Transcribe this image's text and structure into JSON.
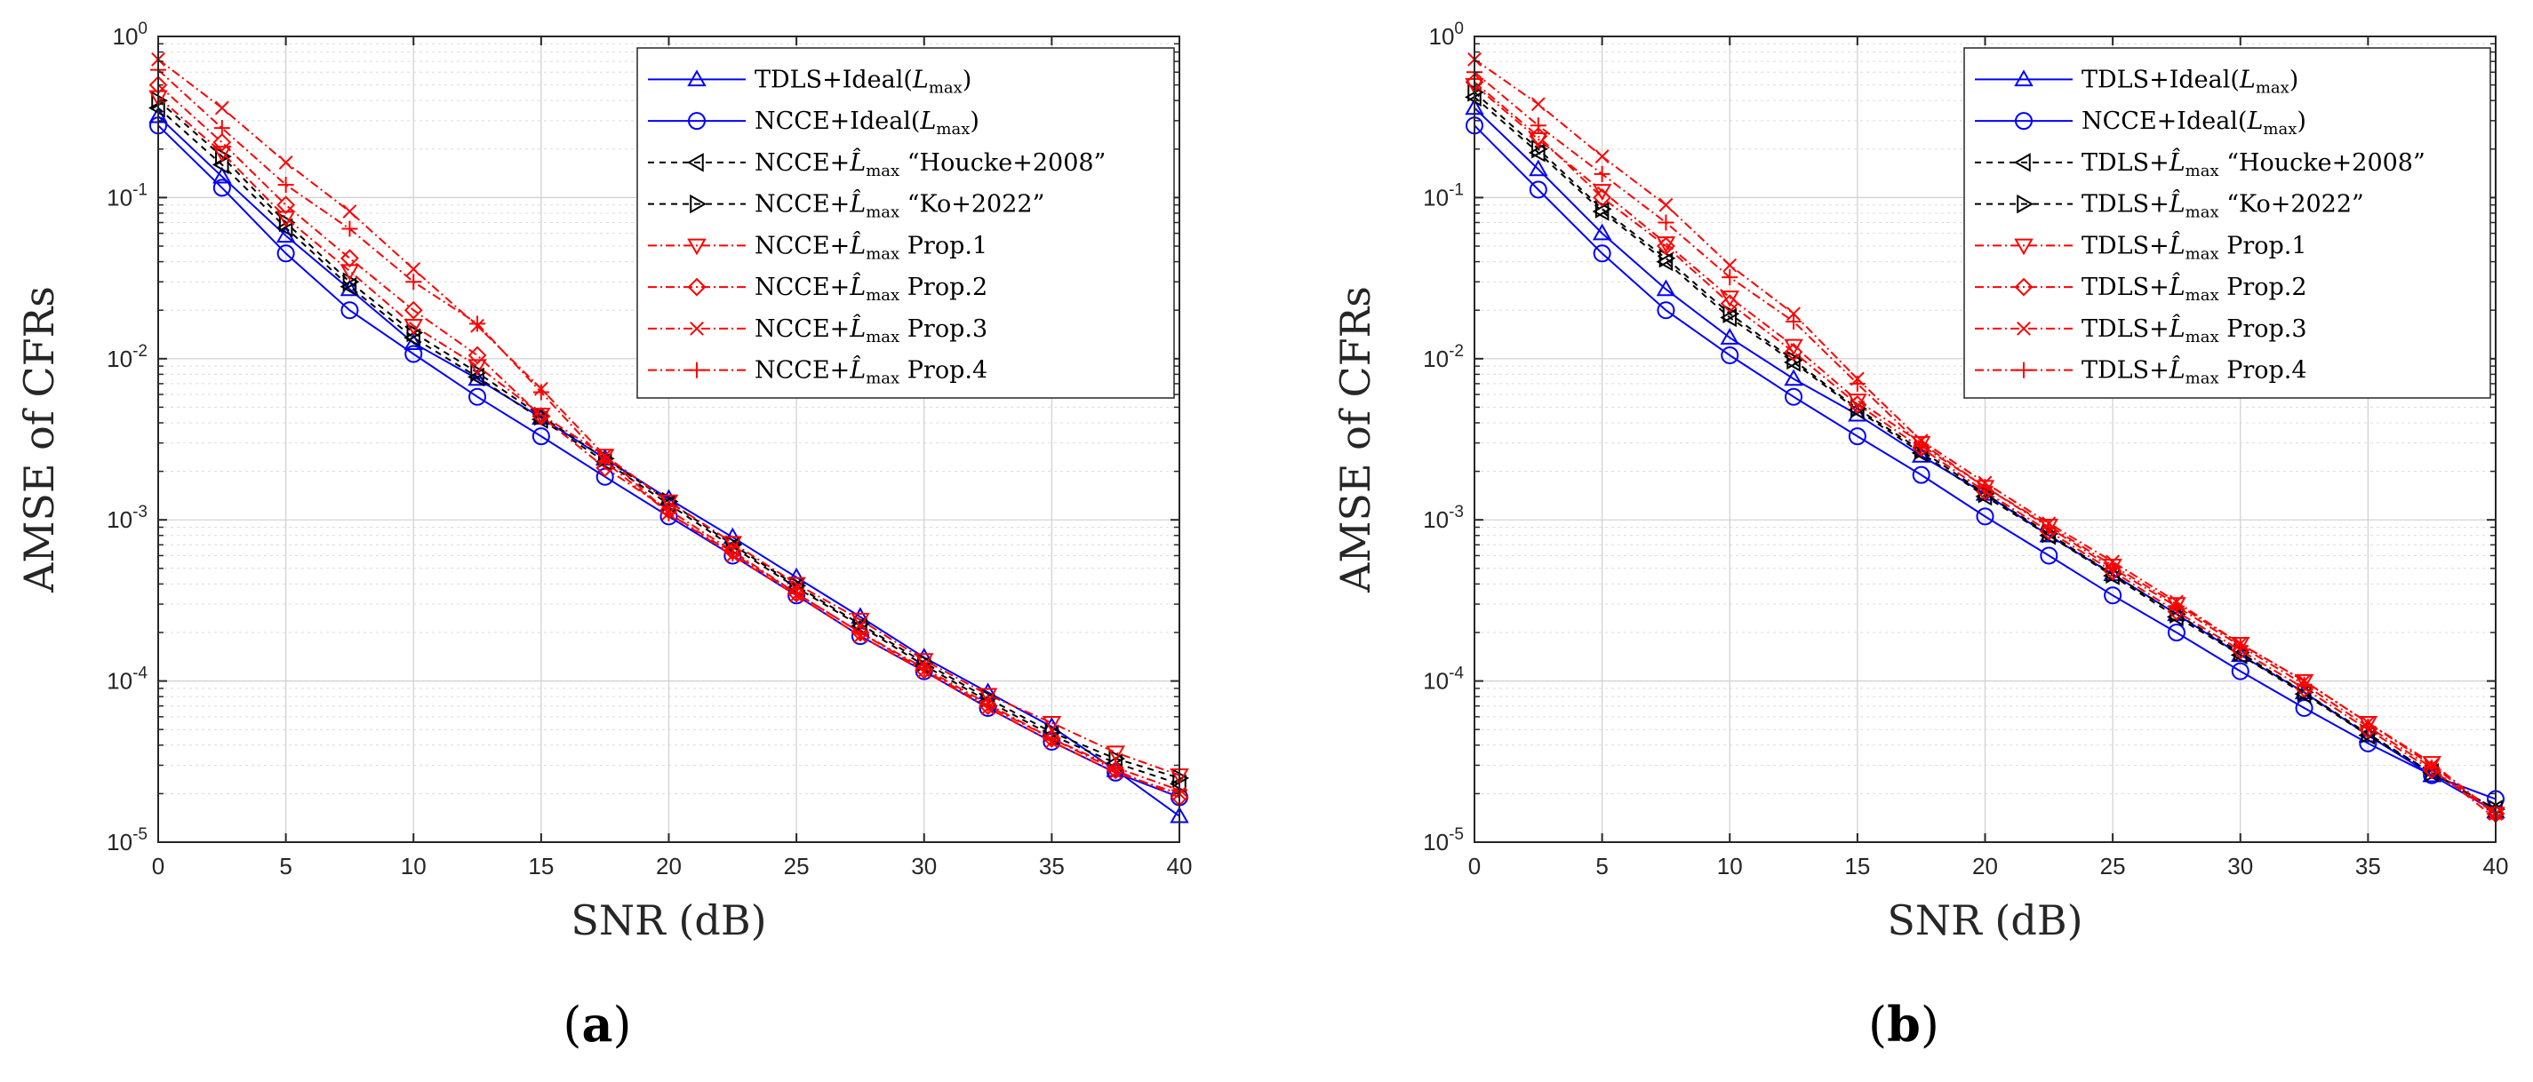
{
  "chart_data": [
    {
      "type": "line",
      "panel_label": "(a)",
      "xlabel": "SNR (dB)",
      "ylabel": "AMSE of CFRs",
      "xlim": [
        0,
        40
      ],
      "ylim": [
        1e-05,
        1
      ],
      "yscale": "log",
      "grid": "on",
      "legend_position": "top-right",
      "x_ticks": [
        "0",
        "5",
        "10",
        "15",
        "20",
        "25",
        "30",
        "35",
        "40"
      ],
      "y_ticks": [
        {
          "base": "10",
          "exp": "0"
        },
        {
          "base": "10",
          "exp": "-1"
        },
        {
          "base": "10",
          "exp": "-2"
        },
        {
          "base": "10",
          "exp": "-3"
        },
        {
          "base": "10",
          "exp": "-4"
        },
        {
          "base": "10",
          "exp": "-5"
        }
      ],
      "x": [
        0,
        2.5,
        5,
        7.5,
        10,
        12.5,
        15,
        17.5,
        20,
        22.5,
        25,
        27.5,
        30,
        32.5,
        35,
        37.5,
        40
      ],
      "series": [
        {
          "name": "TDLS+Ideal(L_max)",
          "legend": {
            "pre": "TDLS+Ideal(",
            "sym": "L",
            "sub": "max",
            "post": ")"
          },
          "color": "#0000ff",
          "dash": "",
          "marker": "triangle-up",
          "values": [
            0.32,
            0.135,
            0.058,
            0.027,
            0.0125,
            0.0075,
            0.0043,
            0.0024,
            0.00135,
            0.00078,
            0.00044,
            0.00025,
            0.00014,
            8.5e-05,
            5.2e-05,
            2.8e-05,
            1.45e-05
          ]
        },
        {
          "name": "NCCE+Ideal(L_max)",
          "legend": {
            "pre": "NCCE+Ideal(",
            "sym": "L",
            "sub": "max",
            "post": ")"
          },
          "color": "#0000ff",
          "dash": "",
          "marker": "circle",
          "values": [
            0.28,
            0.115,
            0.045,
            0.02,
            0.0107,
            0.0058,
            0.0033,
            0.00185,
            0.00105,
            0.0006,
            0.00034,
            0.00019,
            0.000115,
            6.8e-05,
            4.2e-05,
            2.7e-05,
            1.9e-05
          ]
        },
        {
          "name": "NCCE+L̂_max “Houcke+2008”",
          "legend": {
            "pre": "NCCE+",
            "sym": "L̂",
            "sub": "max",
            "post": " “Houcke+2008”"
          },
          "color": "#000000",
          "dash": "7,6",
          "marker": "triangle-left",
          "values": [
            0.36,
            0.16,
            0.065,
            0.028,
            0.0135,
            0.0077,
            0.0042,
            0.0023,
            0.00125,
            0.00068,
            0.00038,
            0.00022,
            0.000125,
            7.5e-05,
            4.6e-05,
            3.1e-05,
            2.3e-05
          ]
        },
        {
          "name": "NCCE+L̂_max “Ko+2022”",
          "legend": {
            "pre": "NCCE+",
            "sym": "L̂",
            "sub": "max",
            "post": " “Ko+2022”"
          },
          "color": "#000000",
          "dash": "7,6",
          "marker": "triangle-right",
          "values": [
            0.4,
            0.18,
            0.07,
            0.03,
            0.0145,
            0.0082,
            0.0044,
            0.0024,
            0.0013,
            0.0007,
            0.00039,
            0.000225,
            0.00013,
            7.8e-05,
            4.8e-05,
            3.3e-05,
            2.5e-05
          ]
        },
        {
          "name": "NCCE+L̂_max Prop.1",
          "legend": {
            "pre": "NCCE+",
            "sym": "L̂",
            "sub": "max",
            "post": " Prop.1"
          },
          "color": "#ff0000",
          "dash": "10,4,2,4",
          "marker": "triangle-down",
          "values": [
            0.42,
            0.19,
            0.075,
            0.035,
            0.016,
            0.009,
            0.0045,
            0.0025,
            0.0013,
            0.00072,
            0.0004,
            0.00024,
            0.000135,
            8.2e-05,
            5.5e-05,
            3.6e-05,
            2.6e-05
          ]
        },
        {
          "name": "NCCE+L̂_max Prop.2",
          "legend": {
            "pre": "NCCE+",
            "sym": "L̂",
            "sub": "max",
            "post": " Prop.2"
          },
          "color": "#ff0000",
          "dash": "10,4,2,4",
          "marker": "diamond",
          "values": [
            0.5,
            0.22,
            0.09,
            0.042,
            0.02,
            0.0105,
            0.0044,
            0.0021,
            0.00115,
            0.00064,
            0.00035,
            0.0002,
            0.000117,
            7e-05,
            4.4e-05,
            2.8e-05,
            1.9e-05
          ]
        },
        {
          "name": "NCCE+L̂_max Prop.3",
          "legend": {
            "pre": "NCCE+",
            "sym": "L̂",
            "sub": "max",
            "post": " Prop.3"
          },
          "color": "#ff0000",
          "dash": "10,4,2,4",
          "marker": "x",
          "values": [
            0.72,
            0.36,
            0.165,
            0.082,
            0.036,
            0.016,
            0.0065,
            0.0025,
            0.0011,
            0.0006,
            0.00034,
            0.00019,
            0.000115,
            6.8e-05,
            4.2e-05,
            2.7e-05,
            2e-05
          ]
        },
        {
          "name": "NCCE+L̂_max Prop.4",
          "legend": {
            "pre": "NCCE+",
            "sym": "L̂",
            "sub": "max",
            "post": " Prop.4"
          },
          "color": "#ff0000",
          "dash": "10,4,2,4",
          "marker": "plus",
          "values": [
            0.62,
            0.27,
            0.12,
            0.064,
            0.03,
            0.0165,
            0.0062,
            0.0023,
            0.0011,
            0.00062,
            0.00035,
            0.0002,
            0.00012,
            7.2e-05,
            4.4e-05,
            2.9e-05,
            2.1e-05
          ]
        }
      ]
    },
    {
      "type": "line",
      "panel_label": "(b)",
      "xlabel": "SNR (dB)",
      "ylabel": "AMSE of CFRs",
      "xlim": [
        0,
        40
      ],
      "ylim": [
        1e-05,
        1
      ],
      "yscale": "log",
      "grid": "on",
      "legend_position": "top-right",
      "x_ticks": [
        "0",
        "5",
        "10",
        "15",
        "20",
        "25",
        "30",
        "35",
        "40"
      ],
      "y_ticks": [
        {
          "base": "10",
          "exp": "0"
        },
        {
          "base": "10",
          "exp": "-1"
        },
        {
          "base": "10",
          "exp": "-2"
        },
        {
          "base": "10",
          "exp": "-3"
        },
        {
          "base": "10",
          "exp": "-4"
        },
        {
          "base": "10",
          "exp": "-5"
        }
      ],
      "x": [
        0,
        2.5,
        5,
        7.5,
        10,
        12.5,
        15,
        17.5,
        20,
        22.5,
        25,
        27.5,
        30,
        32.5,
        35,
        37.5,
        40
      ],
      "series": [
        {
          "name": "TDLS+Ideal(L_max)",
          "legend": {
            "pre": "TDLS+Ideal(",
            "sym": "L",
            "sub": "max",
            "post": ")"
          },
          "color": "#0000ff",
          "dash": "",
          "marker": "triangle-up",
          "values": [
            0.36,
            0.15,
            0.06,
            0.027,
            0.0135,
            0.0075,
            0.0045,
            0.0025,
            0.00145,
            0.0008,
            0.00046,
            0.00026,
            0.000145,
            8.5e-05,
            4.6e-05,
            2.6e-05,
            1.55e-05
          ]
        },
        {
          "name": "NCCE+Ideal(L_max)",
          "legend": {
            "pre": "NCCE+Ideal(",
            "sym": "L",
            "sub": "max",
            "post": ")"
          },
          "color": "#0000ff",
          "dash": "",
          "marker": "circle",
          "values": [
            0.28,
            0.112,
            0.045,
            0.02,
            0.0105,
            0.0058,
            0.0033,
            0.0019,
            0.00105,
            0.0006,
            0.00034,
            0.0002,
            0.000115,
            6.8e-05,
            4.1e-05,
            2.6e-05,
            1.85e-05
          ]
        },
        {
          "name": "TDLS+L̂_max “Houcke+2008”",
          "legend": {
            "pre": "TDLS+",
            "sym": "L̂",
            "sub": "max",
            "post": " “Houcke+2008”"
          },
          "color": "#000000",
          "dash": "7,6",
          "marker": "triangle-left",
          "values": [
            0.42,
            0.19,
            0.082,
            0.04,
            0.018,
            0.0095,
            0.0048,
            0.0026,
            0.0014,
            0.0008,
            0.00045,
            0.00025,
            0.000145,
            8.3e-05,
            4.6e-05,
            2.7e-05,
            1.6e-05
          ]
        },
        {
          "name": "TDLS+L̂_max “Ko+2022”",
          "legend": {
            "pre": "TDLS+",
            "sym": "L̂",
            "sub": "max",
            "post": " “Ko+2022”"
          },
          "color": "#000000",
          "dash": "7,6",
          "marker": "triangle-right",
          "values": [
            0.45,
            0.2,
            0.085,
            0.042,
            0.019,
            0.0098,
            0.0049,
            0.0027,
            0.00145,
            0.00082,
            0.00046,
            0.00026,
            0.00015,
            8.5e-05,
            4.7e-05,
            2.7e-05,
            1.6e-05
          ]
        },
        {
          "name": "TDLS+L̂_max Prop.1",
          "legend": {
            "pre": "TDLS+",
            "sym": "L̂",
            "sub": "max",
            "post": " Prop.1"
          },
          "color": "#ff0000",
          "dash": "10,4,2,4",
          "marker": "triangle-down",
          "values": [
            0.5,
            0.23,
            0.11,
            0.052,
            0.024,
            0.012,
            0.0055,
            0.003,
            0.0016,
            0.00092,
            0.00052,
            0.0003,
            0.00017,
            0.0001,
            5.5e-05,
            3.1e-05,
            1.5e-05
          ]
        },
        {
          "name": "TDLS+L̂_max Prop.2",
          "legend": {
            "pre": "TDLS+",
            "sym": "L̂",
            "sub": "max",
            "post": " Prop.2"
          },
          "color": "#ff0000",
          "dash": "10,4,2,4",
          "marker": "diamond",
          "values": [
            0.52,
            0.24,
            0.1,
            0.05,
            0.022,
            0.011,
            0.0052,
            0.0028,
            0.0015,
            0.00085,
            0.00048,
            0.00027,
            0.000155,
            9e-05,
            5e-05,
            2.8e-05,
            1.5e-05
          ]
        },
        {
          "name": "TDLS+L̂_max Prop.3",
          "legend": {
            "pre": "TDLS+",
            "sym": "L̂",
            "sub": "max",
            "post": " Prop.3"
          },
          "color": "#ff0000",
          "dash": "10,4,2,4",
          "marker": "x",
          "values": [
            0.72,
            0.38,
            0.18,
            0.09,
            0.038,
            0.019,
            0.0075,
            0.0031,
            0.0017,
            0.00095,
            0.00055,
            0.00031,
            0.00017,
            0.0001,
            5.5e-05,
            3e-05,
            1.5e-05
          ]
        },
        {
          "name": "TDLS+L̂_max Prop.4",
          "legend": {
            "pre": "TDLS+",
            "sym": "L̂",
            "sub": "max",
            "post": " Prop.4"
          },
          "color": "#ff0000",
          "dash": "10,4,2,4",
          "marker": "plus",
          "values": [
            0.6,
            0.28,
            0.14,
            0.07,
            0.032,
            0.017,
            0.007,
            0.0029,
            0.0016,
            0.0009,
            0.0005,
            0.00029,
            0.000165,
            9.5e-05,
            5.2e-05,
            2.9e-05,
            1.4e-05
          ]
        }
      ]
    }
  ]
}
